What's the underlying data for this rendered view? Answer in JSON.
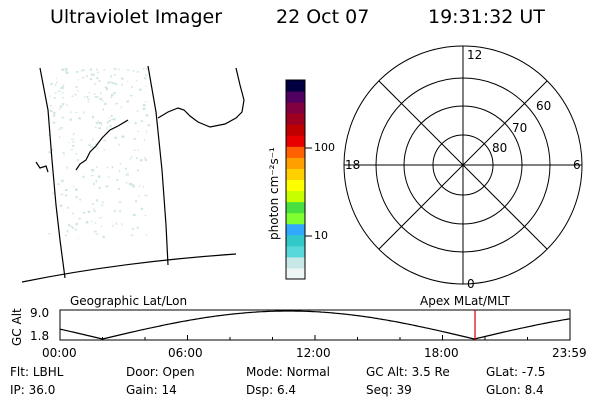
{
  "header": {
    "instrument": "Ultraviolet Imager",
    "date": "22 Oct 07",
    "time": "19:31:32 UT"
  },
  "colorbar": {
    "units_label": "photon cm⁻²s⁻¹",
    "ticks": [
      "100",
      "10"
    ],
    "colors": [
      "#eef5f5",
      "#c8e8e8",
      "#58d8d8",
      "#30c8c8",
      "#30a8ff",
      "#80ff30",
      "#48e040",
      "#c8ff00",
      "#ffff00",
      "#ffd000",
      "#ffa000",
      "#ff6000",
      "#e80000",
      "#c00000",
      "#a00020",
      "#800040",
      "#500060",
      "#000040"
    ]
  },
  "polar_plot": {
    "mlt_labels": {
      "top": "12",
      "left": "18",
      "right": "6",
      "bottom": "0"
    },
    "lat_labels": [
      "60",
      "70",
      "80"
    ]
  },
  "footer_labels": {
    "left": "Geographic Lat/Lon",
    "right": "Apex MLat/MLT"
  },
  "altitude_plot": {
    "axis_title": "GC Alt",
    "y_ticks": [
      "9.0",
      "1.8"
    ],
    "x_ticks": [
      "00:00",
      "06:00",
      "12:00",
      "18:00",
      "23:59"
    ],
    "current_marker_time_hours": 19.53,
    "marker_color": "#cc0000"
  },
  "info_rows": [
    [
      {
        "label": "Flt:",
        "value": "LBHL"
      },
      {
        "label": "Door:",
        "value": "Open"
      },
      {
        "label": "Mode:",
        "value": "Normal"
      },
      {
        "label": "GC Alt:",
        "value": "3.5 Re"
      },
      {
        "label": "GLat:",
        "value": "-7.5"
      }
    ],
    [
      {
        "label": "IP:",
        "value": "36.0"
      },
      {
        "label": "Gain:",
        "value": "14"
      },
      {
        "label": "Dsp:",
        "value": "6.4"
      },
      {
        "label": "Seq:",
        "value": "39"
      },
      {
        "label": "GLon:",
        "value": "8.4"
      }
    ]
  ]
}
